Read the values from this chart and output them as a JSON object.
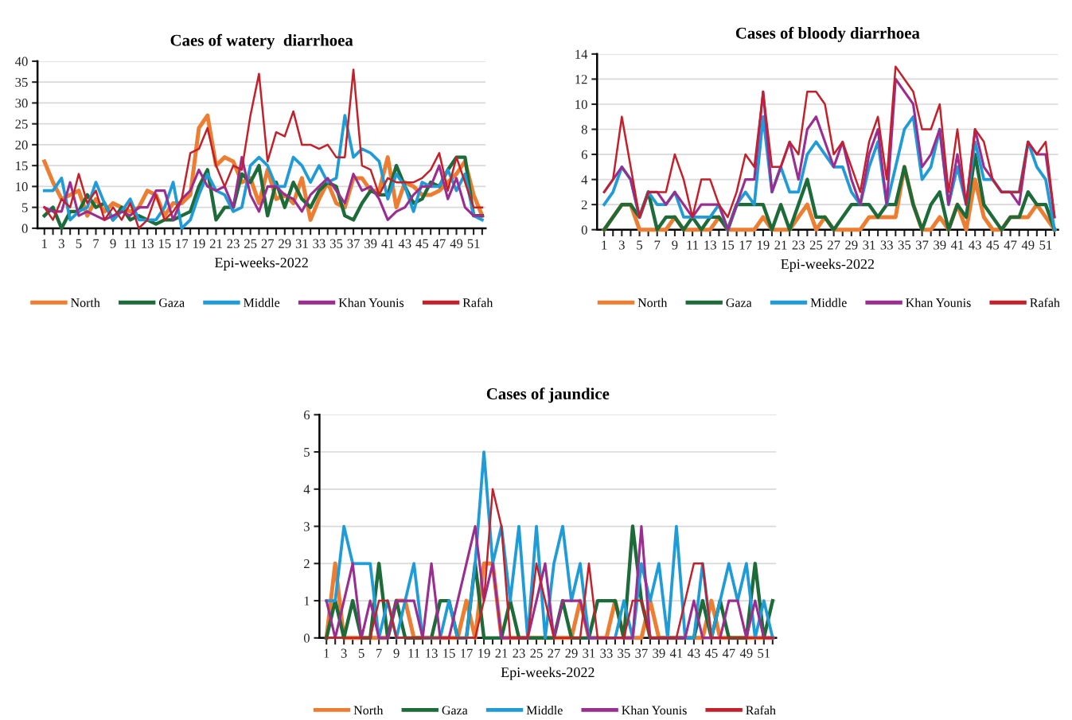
{
  "chart_data": [
    {
      "type": "line",
      "title": "Caes of watery  diarrhoea",
      "xlabel": "Epi-weeks-2022",
      "categories": [
        "1",
        null,
        "3",
        null,
        "5",
        null,
        "7",
        null,
        "9",
        null,
        "11",
        null,
        "13",
        null,
        "15",
        null,
        "17",
        null,
        "19",
        null,
        "21",
        null,
        "23",
        null,
        "25",
        null,
        "27",
        null,
        "29",
        null,
        "31",
        null,
        "33",
        null,
        "35",
        null,
        "37",
        null,
        "39",
        null,
        "41",
        null,
        "43",
        null,
        "45",
        null,
        "47",
        null,
        "49",
        null,
        "51",
        null
      ],
      "ylim": [
        0,
        40
      ],
      "yticks": [
        0,
        5,
        10,
        15,
        20,
        25,
        30,
        35,
        40
      ],
      "grid": "y",
      "legend": "bottom",
      "marker": "none",
      "line_style": "solid",
      "series": [
        {
          "name": "North",
          "color": "#ed7d31",
          "values": [
            16,
            11,
            7,
            8,
            9,
            3,
            7,
            4,
            6,
            5,
            4,
            5,
            9,
            8,
            3,
            6,
            6,
            8,
            24,
            27,
            15,
            17,
            16,
            11,
            12,
            6,
            14,
            7,
            8,
            6,
            12,
            2,
            7,
            11,
            6,
            5,
            12,
            12,
            9,
            9,
            17,
            5,
            11,
            10,
            8,
            8,
            9,
            11,
            13,
            16,
            8,
            3
          ]
        },
        {
          "name": "Gaza",
          "color": "#1e6b3a",
          "values": [
            3,
            5,
            0,
            4,
            4,
            8,
            5,
            6,
            2,
            5,
            2,
            3,
            2,
            1,
            2,
            2,
            3,
            4,
            10,
            14,
            2,
            5,
            5,
            13,
            11,
            15,
            3,
            11,
            5,
            11,
            7,
            5,
            9,
            11,
            10,
            3,
            2,
            6,
            9,
            8,
            8,
            15,
            10,
            6,
            7,
            11,
            10,
            14,
            17,
            17,
            3,
            3
          ]
        },
        {
          "name": "Middle",
          "color": "#1f9bd7",
          "values": [
            9,
            9,
            12,
            2,
            4,
            5,
            11,
            6,
            2,
            4,
            7,
            2,
            2,
            2,
            5,
            11,
            0,
            2,
            8,
            13,
            9,
            8,
            4,
            5,
            15,
            17,
            15,
            10,
            10,
            17,
            15,
            11,
            15,
            11,
            12,
            27,
            17,
            19,
            18,
            16,
            7,
            13,
            10,
            4,
            11,
            10,
            10,
            14,
            9,
            13,
            3,
            2
          ]
        },
        {
          "name": "Khan Younis",
          "color": "#9b2d91",
          "values": [
            5,
            4,
            4,
            11,
            3,
            4,
            3,
            2,
            3,
            4,
            3,
            5,
            5,
            9,
            9,
            2,
            7,
            9,
            14,
            10,
            9,
            10,
            5,
            17,
            8,
            4,
            10,
            10,
            8,
            7,
            4,
            8,
            10,
            12,
            9,
            6,
            13,
            9,
            10,
            7,
            2,
            4,
            5,
            8,
            10,
            10,
            15,
            7,
            12,
            5,
            3,
            3
          ]
        },
        {
          "name": "Rafah",
          "color": "#c4202a",
          "values": [
            5,
            2,
            7,
            5,
            13,
            6,
            9,
            2,
            5,
            2,
            6,
            0,
            2,
            8,
            2,
            4,
            7,
            18,
            19,
            24,
            15,
            10,
            15,
            14,
            27,
            37,
            16,
            23,
            22,
            28,
            20,
            20,
            19,
            20,
            17,
            17,
            38,
            15,
            14,
            8,
            12,
            11,
            11,
            11,
            12,
            14,
            18,
            9,
            17,
            11,
            5,
            5
          ]
        }
      ]
    },
    {
      "type": "line",
      "title": "Cases of bloody diarrhoea",
      "xlabel": "Epi-weeks-2022",
      "categories": [
        "1",
        null,
        "3",
        null,
        "5",
        null,
        "7",
        null,
        "9",
        null,
        "11",
        null,
        "13",
        null,
        "15",
        null,
        "17",
        null,
        "19",
        null,
        "21",
        null,
        "23",
        null,
        "25",
        null,
        "27",
        null,
        "29",
        null,
        "31",
        null,
        "33",
        null,
        "35",
        null,
        "37",
        null,
        "39",
        null,
        "41",
        null,
        "43",
        null,
        "45",
        null,
        "47",
        null,
        "49",
        null,
        "51",
        null
      ],
      "ylim": [
        0,
        14
      ],
      "yticks": [
        0,
        2,
        4,
        6,
        8,
        10,
        12,
        14
      ],
      "grid": "y",
      "legend": "bottom",
      "marker": "none",
      "line_style": "solid",
      "series": [
        {
          "name": "North",
          "color": "#ed7d31",
          "values": [
            0,
            1,
            2,
            2,
            0,
            0,
            0,
            0,
            1,
            0,
            0,
            0,
            0,
            1,
            0,
            0,
            0,
            0,
            1,
            0,
            0,
            0,
            1,
            2,
            0,
            1,
            0,
            0,
            0,
            0,
            1,
            1,
            1,
            1,
            5,
            2,
            0,
            0,
            1,
            0,
            2,
            0,
            4,
            1,
            0,
            0,
            1,
            1,
            1,
            2,
            1,
            0
          ]
        },
        {
          "name": "Gaza",
          "color": "#1e6b3a",
          "values": [
            0,
            1,
            2,
            2,
            1,
            3,
            0,
            1,
            1,
            0,
            1,
            0,
            1,
            1,
            0,
            2,
            2,
            2,
            2,
            0,
            2,
            0,
            2,
            4,
            1,
            1,
            0,
            1,
            2,
            2,
            2,
            1,
            2,
            2,
            5,
            2,
            0,
            2,
            3,
            0,
            2,
            1,
            6,
            2,
            1,
            0,
            1,
            1,
            3,
            2,
            2,
            0
          ]
        },
        {
          "name": "Middle",
          "color": "#1f9bd7",
          "values": [
            2,
            3,
            5,
            4,
            1,
            3,
            2,
            2,
            3,
            1,
            1,
            1,
            1,
            2,
            0,
            2,
            3,
            2,
            9,
            3,
            5,
            3,
            3,
            6,
            7,
            6,
            5,
            5,
            3,
            2,
            5,
            7,
            2,
            5,
            8,
            9,
            4,
            5,
            8,
            2,
            5,
            2,
            7,
            4,
            4,
            3,
            3,
            3,
            7,
            5,
            4,
            0
          ]
        },
        {
          "name": "Khan Younis",
          "color": "#9b2d91",
          "values": [
            3,
            4,
            5,
            4,
            1,
            3,
            3,
            2,
            3,
            2,
            1,
            2,
            2,
            2,
            0,
            2,
            4,
            4,
            11,
            3,
            5,
            7,
            4,
            8,
            9,
            7,
            5,
            7,
            4,
            2,
            6,
            8,
            2,
            12,
            11,
            10,
            5,
            6,
            8,
            2,
            6,
            2,
            8,
            5,
            4,
            3,
            3,
            2,
            7,
            6,
            6,
            1
          ]
        },
        {
          "name": "Rafah",
          "color": "#c4202a",
          "values": [
            3,
            4,
            9,
            5,
            1,
            3,
            3,
            3,
            6,
            4,
            1,
            4,
            4,
            2,
            1,
            3,
            6,
            5,
            11,
            5,
            5,
            7,
            6,
            11,
            11,
            10,
            6,
            7,
            5,
            3,
            7,
            9,
            4,
            13,
            12,
            11,
            8,
            8,
            10,
            3,
            8,
            2,
            8,
            7,
            4,
            3,
            3,
            3,
            7,
            6,
            7,
            1
          ]
        }
      ]
    },
    {
      "type": "line",
      "title": "Cases of jaundice",
      "xlabel": "Epi-weeks-2022",
      "categories": [
        "1",
        null,
        "3",
        null,
        "5",
        null,
        "7",
        null,
        "9",
        null,
        "11",
        null,
        "13",
        null,
        "15",
        null,
        "17",
        null,
        "19",
        null,
        "21",
        null,
        "23",
        null,
        "25",
        null,
        "27",
        null,
        "29",
        null,
        "31",
        null,
        "33",
        null,
        "35",
        null,
        "37",
        null,
        "39",
        null,
        "41",
        null,
        "43",
        null,
        "45",
        null,
        "47",
        null,
        "49",
        null,
        "51",
        null
      ],
      "ylim": [
        0,
        6
      ],
      "yticks": [
        0,
        1,
        2,
        3,
        4,
        5,
        6
      ],
      "grid": "y",
      "legend": "bottom",
      "marker": "none",
      "line_style": "solid",
      "series": [
        {
          "name": "North",
          "color": "#ed7d31",
          "values": [
            0,
            2,
            0,
            0,
            0,
            0,
            0,
            0,
            1,
            1,
            0,
            0,
            0,
            0,
            0,
            0,
            1,
            0,
            2,
            2,
            0,
            0,
            0,
            0,
            0,
            0,
            0,
            0,
            0,
            1,
            0,
            0,
            0,
            1,
            0,
            0,
            0,
            1,
            0,
            0,
            0,
            0,
            0,
            0,
            1,
            0,
            0,
            0,
            0,
            0,
            0,
            0
          ]
        },
        {
          "name": "Gaza",
          "color": "#1e6b3a",
          "values": [
            0,
            1,
            0,
            1,
            0,
            0,
            2,
            0,
            1,
            0,
            0,
            0,
            0,
            1,
            1,
            0,
            0,
            2,
            0,
            0,
            0,
            1,
            0,
            0,
            0,
            0,
            0,
            1,
            0,
            0,
            0,
            1,
            1,
            1,
            0,
            3,
            1,
            0,
            0,
            0,
            0,
            0,
            0,
            1,
            0,
            1,
            0,
            0,
            0,
            2,
            0,
            1
          ]
        },
        {
          "name": "Middle",
          "color": "#1f9bd7",
          "values": [
            1,
            1,
            3,
            2,
            2,
            2,
            0,
            1,
            0,
            1,
            2,
            0,
            0,
            0,
            1,
            0,
            0,
            2,
            5,
            2,
            3,
            1,
            3,
            0,
            3,
            0,
            2,
            3,
            1,
            2,
            0,
            0,
            0,
            0,
            1,
            0,
            2,
            1,
            2,
            0,
            3,
            0,
            0,
            2,
            0,
            1,
            2,
            1,
            2,
            0,
            1,
            0
          ]
        },
        {
          "name": "Khan Younis",
          "color": "#9b2d91",
          "values": [
            1,
            0,
            1,
            2,
            0,
            1,
            0,
            0,
            1,
            1,
            1,
            0,
            2,
            0,
            0,
            1,
            2,
            3,
            1,
            2,
            0,
            0,
            0,
            0,
            1,
            2,
            0,
            1,
            1,
            1,
            0,
            0,
            0,
            0,
            0,
            0,
            3,
            0,
            0,
            0,
            0,
            0,
            1,
            0,
            0,
            0,
            1,
            1,
            0,
            1,
            0,
            0
          ]
        },
        {
          "name": "Rafah",
          "color": "#c4202a",
          "values": [
            0,
            0,
            0,
            0,
            0,
            0,
            1,
            1,
            0,
            0,
            0,
            0,
            0,
            0,
            0,
            0,
            0,
            0,
            1,
            4,
            3,
            0,
            0,
            0,
            2,
            1,
            0,
            0,
            0,
            0,
            2,
            0,
            0,
            0,
            0,
            1,
            1,
            0,
            0,
            0,
            0,
            1,
            2,
            2,
            0,
            0,
            0,
            0,
            0,
            0,
            0,
            0
          ]
        }
      ]
    }
  ]
}
